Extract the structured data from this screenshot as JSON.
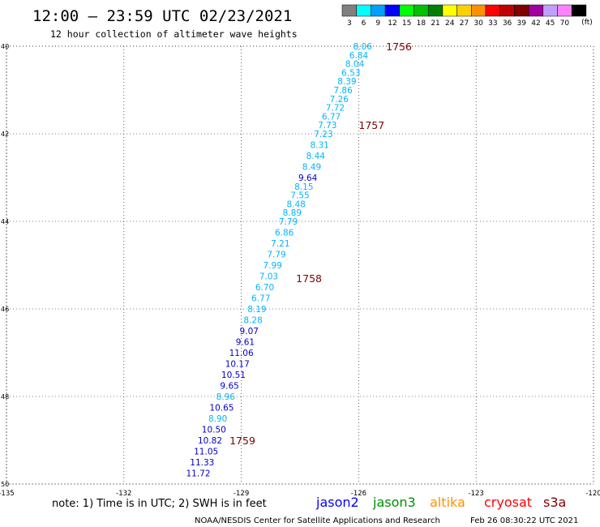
{
  "header": {
    "title": "12:00 – 23:59 UTC 02/23/2021",
    "subtitle": "12 hour collection of altimeter wave heights"
  },
  "legend": {
    "unit": "(ft)",
    "bins": [
      {
        "label": "3",
        "color": "#808080"
      },
      {
        "label": "6",
        "color": "#00ffff"
      },
      {
        "label": "9",
        "color": "#00a0ff"
      },
      {
        "label": "12",
        "color": "#0000ff"
      },
      {
        "label": "15",
        "color": "#00ff00"
      },
      {
        "label": "18",
        "color": "#00c000"
      },
      {
        "label": "21",
        "color": "#008000"
      },
      {
        "label": "24",
        "color": "#ffff00"
      },
      {
        "label": "27",
        "color": "#ffd000"
      },
      {
        "label": "30",
        "color": "#ff9000"
      },
      {
        "label": "33",
        "color": "#ff0000"
      },
      {
        "label": "36",
        "color": "#c00000"
      },
      {
        "label": "39",
        "color": "#800000"
      },
      {
        "label": "42",
        "color": "#a000a0"
      },
      {
        "label": "45",
        "color": "#c0a0ff"
      },
      {
        "label": "70",
        "color": "#ff80ff"
      },
      {
        "label": "",
        "color": "#000000"
      }
    ]
  },
  "axes": {
    "lon_ticks": [
      "-135",
      "-132",
      "-129",
      "-126",
      "-123",
      "-120"
    ],
    "lat_ticks": [
      "40",
      "42",
      "44",
      "46",
      "48",
      "50"
    ]
  },
  "chart_data": {
    "type": "scatter",
    "readings": [
      {
        "value": "8.06",
        "lon": -125.9,
        "lat": 40.0,
        "color": "#00b4ff"
      },
      {
        "value": "6.84",
        "lon": -126.0,
        "lat": 40.2,
        "color": "#00b4ff"
      },
      {
        "value": "8.04",
        "lon": -126.1,
        "lat": 40.4,
        "color": "#00b4ff"
      },
      {
        "value": "6.53",
        "lon": -126.2,
        "lat": 40.6,
        "color": "#00b4ff"
      },
      {
        "value": "8.39",
        "lon": -126.3,
        "lat": 40.8,
        "color": "#00b4ff"
      },
      {
        "value": "7.86",
        "lon": -126.4,
        "lat": 41.0,
        "color": "#00b4ff"
      },
      {
        "value": "7.26",
        "lon": -126.5,
        "lat": 41.2,
        "color": "#00b4ff"
      },
      {
        "value": "7.72",
        "lon": -126.6,
        "lat": 41.4,
        "color": "#00b4ff"
      },
      {
        "value": "6.77",
        "lon": -126.7,
        "lat": 41.6,
        "color": "#00b4ff"
      },
      {
        "value": "7.73",
        "lon": -126.8,
        "lat": 41.8,
        "color": "#00b4ff"
      },
      {
        "value": "7.23",
        "lon": -126.9,
        "lat": 42.0,
        "color": "#00b4ff"
      },
      {
        "value": "8.31",
        "lon": -127.0,
        "lat": 42.25,
        "color": "#00b4ff"
      },
      {
        "value": "8.44",
        "lon": -127.1,
        "lat": 42.5,
        "color": "#00b4ff"
      },
      {
        "value": "8.49",
        "lon": -127.2,
        "lat": 42.75,
        "color": "#00b4ff"
      },
      {
        "value": "9.64",
        "lon": -127.3,
        "lat": 43.0,
        "color": "#0000c8"
      },
      {
        "value": "8.15",
        "lon": -127.4,
        "lat": 43.2,
        "color": "#00b4ff"
      },
      {
        "value": "7.55",
        "lon": -127.5,
        "lat": 43.4,
        "color": "#00b4ff"
      },
      {
        "value": "8.48",
        "lon": -127.6,
        "lat": 43.6,
        "color": "#00b4ff"
      },
      {
        "value": "8.89",
        "lon": -127.7,
        "lat": 43.8,
        "color": "#00b4ff"
      },
      {
        "value": "7.79",
        "lon": -127.8,
        "lat": 44.0,
        "color": "#00b4ff"
      },
      {
        "value": "6.86",
        "lon": -127.9,
        "lat": 44.25,
        "color": "#00b4ff"
      },
      {
        "value": "7.21",
        "lon": -128.0,
        "lat": 44.5,
        "color": "#00b4ff"
      },
      {
        "value": "7.79",
        "lon": -128.1,
        "lat": 44.75,
        "color": "#00b4ff"
      },
      {
        "value": "7.99",
        "lon": -128.2,
        "lat": 45.0,
        "color": "#00b4ff"
      },
      {
        "value": "7.03",
        "lon": -128.3,
        "lat": 45.25,
        "color": "#00b4ff"
      },
      {
        "value": "6.70",
        "lon": -128.4,
        "lat": 45.5,
        "color": "#00b4ff"
      },
      {
        "value": "6.77",
        "lon": -128.5,
        "lat": 45.75,
        "color": "#00b4ff"
      },
      {
        "value": "8.19",
        "lon": -128.6,
        "lat": 46.0,
        "color": "#00b4ff"
      },
      {
        "value": "8.28",
        "lon": -128.7,
        "lat": 46.25,
        "color": "#00b4ff"
      },
      {
        "value": "9.07",
        "lon": -128.8,
        "lat": 46.5,
        "color": "#0000c8"
      },
      {
        "value": "9.61",
        "lon": -128.9,
        "lat": 46.75,
        "color": "#0000c8"
      },
      {
        "value": "11.06",
        "lon": -129.0,
        "lat": 47.0,
        "color": "#0000c8"
      },
      {
        "value": "10.17",
        "lon": -129.1,
        "lat": 47.25,
        "color": "#0000c8"
      },
      {
        "value": "10.51",
        "lon": -129.2,
        "lat": 47.5,
        "color": "#0000c8"
      },
      {
        "value": "9.65",
        "lon": -129.3,
        "lat": 47.75,
        "color": "#0000c8"
      },
      {
        "value": "8.96",
        "lon": -129.4,
        "lat": 48.0,
        "color": "#00b4ff"
      },
      {
        "value": "10.65",
        "lon": -129.5,
        "lat": 48.25,
        "color": "#0000c8"
      },
      {
        "value": "8.90",
        "lon": -129.6,
        "lat": 48.5,
        "color": "#00b4ff"
      },
      {
        "value": "10.50",
        "lon": -129.7,
        "lat": 48.75,
        "color": "#0000c8"
      },
      {
        "value": "10.82",
        "lon": -129.8,
        "lat": 49.0,
        "color": "#0000c8"
      },
      {
        "value": "11.05",
        "lon": -129.9,
        "lat": 49.25,
        "color": "#0000c8"
      },
      {
        "value": "11.33",
        "lon": -130.0,
        "lat": 49.5,
        "color": "#0000c8"
      },
      {
        "value": "11.72",
        "lon": -130.1,
        "lat": 49.75,
        "color": "#0000c8"
      }
    ],
    "time_marks": [
      {
        "label": "1756",
        "lon": -125.3,
        "lat": 40.0
      },
      {
        "label": "1757",
        "lon": -126.0,
        "lat": 41.8
      },
      {
        "label": "1758",
        "lon": -127.6,
        "lat": 45.3
      },
      {
        "label": "1759",
        "lon": -129.3,
        "lat": 49.0
      }
    ]
  },
  "footer": {
    "note": "note: 1) Time is in UTC; 2) SWH is in feet",
    "satellites": [
      {
        "name": "jason2",
        "color": "#0000ff"
      },
      {
        "name": "jason3",
        "color": "#009000"
      },
      {
        "name": "altika",
        "color": "#ff9000"
      },
      {
        "name": "cryosat",
        "color": "#ff0000"
      },
      {
        "name": "s3a",
        "color": "#800000"
      }
    ],
    "credit": "NOAA/NESDIS Center for Satellite Applications and Research",
    "timestamp": "Feb 26 08:30:22 UTC 2021"
  }
}
